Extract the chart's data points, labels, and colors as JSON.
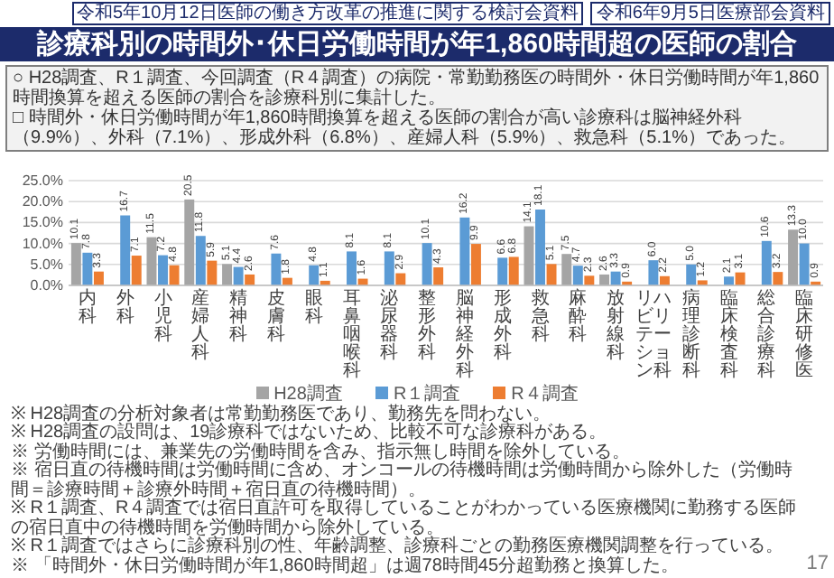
{
  "chart_data": {
    "type": "bar",
    "title": "診療科別の時間外･休日労働時間が年1,860時間超の医師の割合",
    "annotations": [
      "令和5年10月12日医師の働き方改革の推進に関する検討会資料",
      "令和6年9月5日医療部会資料",
      "○ H28調査、R１調査、今回調査（R４調査）の病院・常勤勤務医の時間外・休日労働時間が年1,860時間換算を超える医師の割合を診療科別に集計した。",
      "□ 時間外・休日労働時間が年1,860時間換算を超える医師の割合が高い診療科は脳神経外科（9.9%）、外科（7.1%）、形成外科（6.8%）、産婦人科（5.9%）、救急科（5.1%）であった。",
      "※ H28調査の分析対象者は常勤勤務医であり、勤務先を問わない。",
      "※ H28調査の設問は、19診療科ではないため、比較不可な診療科がある。",
      "※ 労働時間には、兼業先の労働時間を含み、指示無し時間を除外している。",
      "※ 宿日直の待機時間は労働時間に含め、オンコールの待機時間は労働時間から除外した（労働時間＝診療時間＋診療外時間＋宿日直の待機時間）。",
      "※ R１調査、R４調査では宿日直許可を取得していることがわかっている医療機関に勤務する医師の宿日直中の待機時間を労働時間から除外している。",
      "※ R１調査ではさらに診療科別の性、年齢調整、診療科ごとの勤務医療機関調整を行っている。",
      "※ 「時間外・休日労働時間が年1,860時間超」は週78時間45分超勤務と換算した。",
      "17"
    ],
    "categories": [
      "内科",
      "外科",
      "小児科",
      "産婦人科",
      "精神科",
      "皮膚科",
      "眼科",
      "耳鼻咽喉科",
      "泌尿器科",
      "整形外科",
      "脳神経外科",
      "形成外科",
      "救急科",
      "麻酔科",
      "放射線科",
      "リハビリテーション科",
      "病理診断科",
      "臨床検査科",
      "総合診療科",
      "臨床研修医"
    ],
    "series": [
      {
        "name": "H28調査",
        "color": "#a5a5a5",
        "values": [
          10.1,
          null,
          11.5,
          20.5,
          5.1,
          null,
          null,
          null,
          null,
          null,
          null,
          null,
          14.1,
          7.5,
          2.6,
          null,
          null,
          null,
          null,
          13.3
        ],
        "value_labels": [
          "10.1",
          null,
          "11.5",
          "20.5",
          "5.1",
          null,
          null,
          null,
          null,
          null,
          null,
          null,
          "14.1",
          "7.5",
          "2.6",
          null,
          null,
          null,
          null,
          "13.3"
        ]
      },
      {
        "name": "R１調査",
        "color": "#5b9bd5",
        "values": [
          7.8,
          16.7,
          7.2,
          11.8,
          4.4,
          7.6,
          4.8,
          8.1,
          8.1,
          10.1,
          16.2,
          6.6,
          18.1,
          4.7,
          3.3,
          6.0,
          5.0,
          2.1,
          10.6,
          10.0
        ],
        "value_labels": [
          "7.8",
          "16.7",
          "7.2",
          "11.8",
          "4.4",
          "7.6",
          "4.8",
          "8.1",
          "8.1",
          "10.1",
          "16.2",
          "6.6",
          "18.1",
          "4.7",
          "3.3",
          "6.0",
          "5.0",
          "2.1",
          "10.6",
          "10.0"
        ]
      },
      {
        "name": "R４調査",
        "color": "#ed7d31",
        "values": [
          3.3,
          7.1,
          4.8,
          5.9,
          2.6,
          1.8,
          1.1,
          1.6,
          2.9,
          4.3,
          9.9,
          6.8,
          5.1,
          2.3,
          0.9,
          2.2,
          1.2,
          3.1,
          3.2,
          0.9
        ],
        "value_labels": [
          "3.3",
          "7.1",
          "4.8",
          "5.9",
          "2.6",
          "1.8",
          "1.1",
          "1.6",
          "2.9",
          "4.3",
          "9.9",
          "6.8",
          "5.1",
          "2.3",
          "0.9",
          "2.2",
          "1.2",
          "3.1",
          "3.2",
          "0.9"
        ]
      }
    ],
    "ylim": [
      0,
      25
    ],
    "yticks": [
      {
        "value": 0,
        "label": "0.0%"
      },
      {
        "value": 5,
        "label": "5.0%"
      },
      {
        "value": 10,
        "label": "10.0%"
      },
      {
        "value": 15,
        "label": "15.0%"
      },
      {
        "value": 20,
        "label": "20.0%"
      },
      {
        "value": 25,
        "label": "25.0%"
      }
    ],
    "grid": "y",
    "legend": "bottom"
  }
}
